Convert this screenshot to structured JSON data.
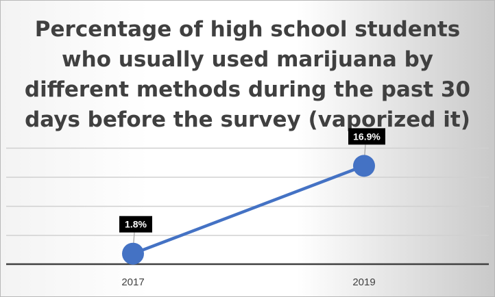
{
  "chart_data": {
    "type": "line",
    "title": "Percentage of high school students who usually used marijuana by different methods during the past 30 days before the survey (vaporized it)",
    "categories": [
      "2017",
      "2019"
    ],
    "series": [
      {
        "values": [
          1.8,
          16.9
        ],
        "data_labels": [
          "1.8%",
          "16.9%"
        ],
        "color": "#4472C4"
      }
    ],
    "ylim": [
      0,
      20
    ],
    "grid": true,
    "legend": "none",
    "marker": "circle"
  },
  "colors": {
    "line": "#4472C4",
    "gridline": "#d0d0d0",
    "axis": "#404040",
    "label_bg": "#000000",
    "label_text": "#ffffff"
  }
}
